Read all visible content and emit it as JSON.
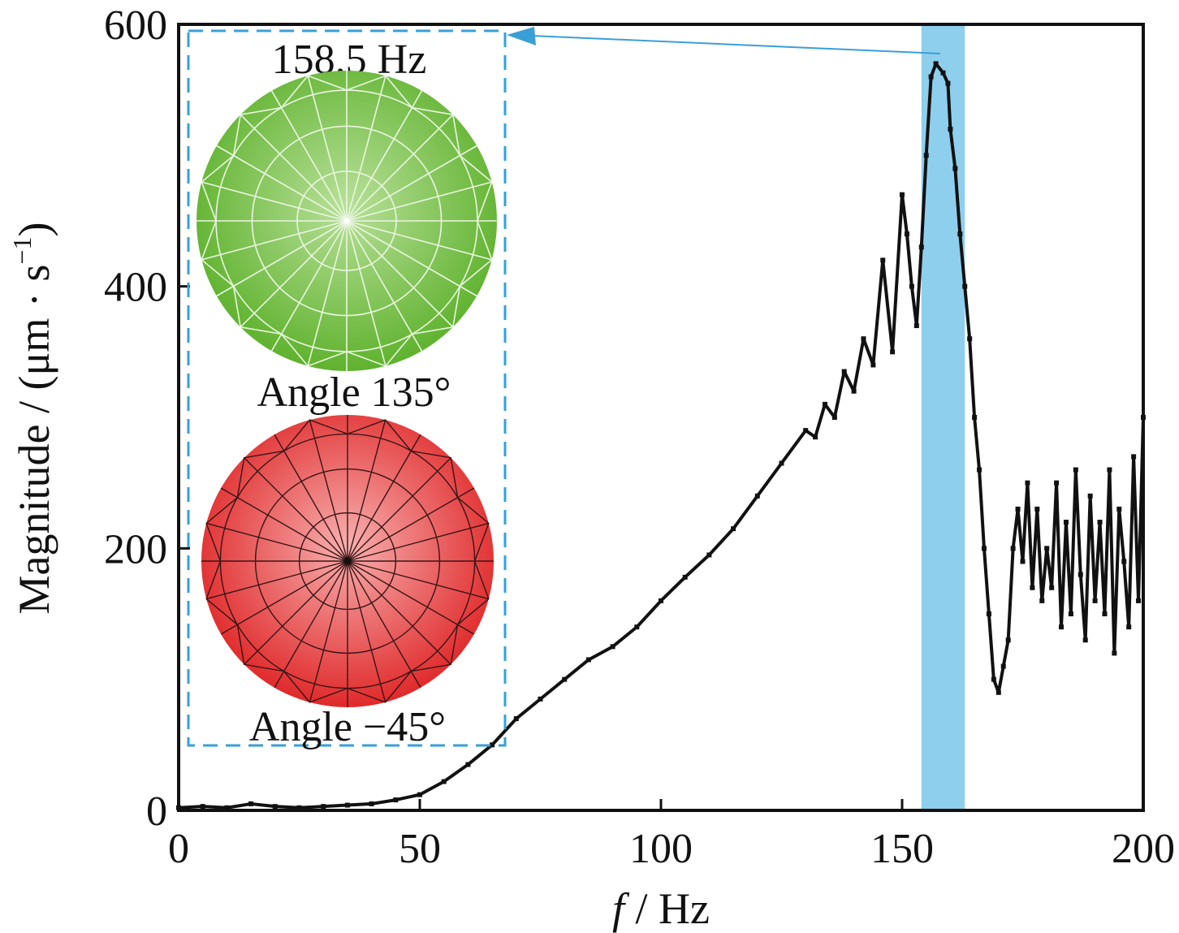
{
  "chart_data": {
    "type": "line",
    "xlabel_italic": "f",
    "xlabel_rest": " / Hz",
    "ylabel_main": "Magnitude / (μm · s",
    "ylabel_sup": "−1",
    "ylabel_close": ")",
    "xlim": [
      0,
      200
    ],
    "ylim": [
      0,
      600
    ],
    "xticks": [
      0,
      50,
      100,
      150,
      200
    ],
    "xtick_labels": [
      "0",
      "50",
      "100",
      "150",
      "200"
    ],
    "yticks": [
      0,
      200,
      400,
      600
    ],
    "ytick_labels": [
      "0",
      "200",
      "400",
      "600"
    ],
    "highlight_band": {
      "x_range": [
        154,
        163
      ],
      "color": "#8ecfed"
    },
    "series": [
      {
        "color": "#111111",
        "x": [
          0,
          5,
          10,
          15,
          20,
          25,
          30,
          35,
          40,
          45,
          50,
          55,
          60,
          65,
          70,
          75,
          80,
          85,
          90,
          95,
          100,
          105,
          110,
          115,
          120,
          125,
          130,
          132,
          134,
          136,
          138,
          140,
          142,
          144,
          146,
          148,
          150,
          151,
          152,
          153,
          154,
          155,
          156,
          157,
          158.5,
          159.5,
          160,
          161,
          162,
          163,
          164,
          165,
          166,
          167,
          168,
          169,
          170,
          171,
          172,
          173,
          174,
          175,
          176,
          177,
          178,
          179,
          180,
          181,
          182,
          183,
          184,
          185,
          186,
          187,
          188,
          189,
          190,
          191,
          192,
          193,
          194,
          195,
          196,
          197,
          198,
          199,
          200
        ],
        "y": [
          2,
          3,
          2,
          5,
          3,
          2,
          3,
          4,
          5,
          8,
          12,
          22,
          35,
          50,
          70,
          85,
          100,
          115,
          125,
          140,
          160,
          178,
          195,
          215,
          240,
          265,
          290,
          285,
          310,
          300,
          335,
          320,
          360,
          340,
          420,
          350,
          470,
          440,
          400,
          370,
          430,
          500,
          560,
          570,
          563,
          555,
          520,
          490,
          440,
          400,
          360,
          300,
          260,
          200,
          150,
          100,
          90,
          110,
          130,
          200,
          230,
          190,
          250,
          170,
          230,
          160,
          200,
          170,
          250,
          140,
          220,
          150,
          260,
          180,
          130,
          240,
          160,
          220,
          150,
          260,
          120,
          230,
          190,
          140,
          270,
          160,
          300
        ]
      }
    ]
  },
  "inset": {
    "frequency_label": "158.5 Hz",
    "angle_top_label": "Angle 135°",
    "angle_bottom_label": "Angle −45°",
    "top_disk_color": "#6bbf3a",
    "bottom_disk_color": "#e8383a",
    "frame_color": "#3a9fd6"
  }
}
